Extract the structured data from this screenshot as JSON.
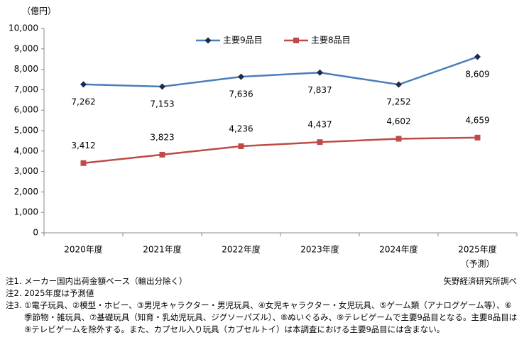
{
  "chart_data": {
    "type": "line",
    "unit_label": "（億円）",
    "categories": [
      "2020年度",
      "2021年度",
      "2022年度",
      "2023年度",
      "2024年度",
      "2025年度"
    ],
    "annotations": [
      "（予測）"
    ],
    "series": [
      {
        "name": "主要9品目",
        "color": "#4a7ebb",
        "marker": "diamond",
        "marker_color": "#1f2a4d",
        "values": [
          7262,
          7153,
          7636,
          7837,
          7252,
          8609
        ],
        "value_labels": [
          "7,262",
          "7,153",
          "7,636",
          "7,837",
          "7,252",
          "8,609"
        ]
      },
      {
        "name": "主要8品目",
        "color": "#be4b48",
        "marker": "square",
        "marker_color": "#be4b48",
        "values": [
          3412,
          3823,
          4236,
          4437,
          4602,
          4659
        ],
        "value_labels": [
          "3,412",
          "3,823",
          "4,236",
          "4,437",
          "4,602",
          "4,659"
        ]
      }
    ],
    "ylim": [
      0,
      10000
    ],
    "yticks": [
      0,
      {
        "value": 1000,
        "label": "1,000"
      },
      {
        "value": 2000,
        "label": "2,000"
      },
      {
        "value": 3000,
        "label": "3,000"
      },
      {
        "value": 4000,
        "label": "4,000"
      },
      {
        "value": 5000,
        "label": "5,000"
      },
      {
        "value": 6000,
        "label": "6,000"
      },
      {
        "value": 7000,
        "label": "7,000"
      },
      {
        "value": 8000,
        "label": "8,000"
      },
      {
        "value": 9000,
        "label": "9,000"
      },
      {
        "value": 10000,
        "label": "10,000"
      }
    ],
    "grid": false,
    "legend": "top",
    "notes": [
      "注1.  メーカー国内出荷金額ベース（輸出分除く）",
      "注2.  2025年度は予測値",
      "注3.  ①電子玩具、②模型・ホビー、③男児キャラクター・男児玩具、④女児キャラクター・女児玩具、⑤ゲーム類（アナログゲーム等）、⑥季節物・雑玩具、⑦基礎玩具（知育・乳幼児玩具、ジグソーパズル）、⑧ぬいぐるみ、⑨テレビゲームで主要9品目となる。主要8品目は⑨テレビゲームを除外する。また、カプセル入り玩具（カプセルトイ）は本調査における主要9品目には含まない。"
    ],
    "source": "矢野経済研究所調べ"
  }
}
